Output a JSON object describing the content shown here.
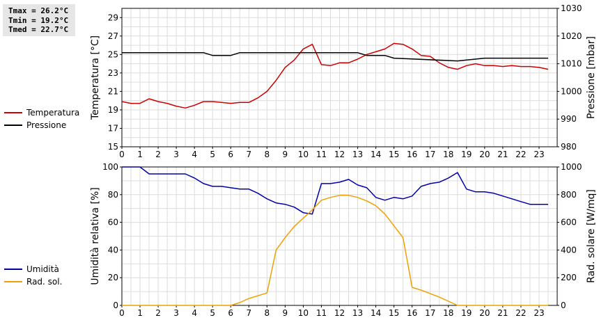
{
  "stats": {
    "tmax": "Tmax = 26.2°C",
    "tmin": "Tmin = 19.2°C",
    "tmed": "Tmed = 22.7°C"
  },
  "colors": {
    "temperatura": "#cc0000",
    "pressione": "#000000",
    "umidita": "#0000aa",
    "rad_sol": "#f0a000"
  },
  "legend_top": [
    {
      "label": "Temperatura",
      "color": "#cc0000"
    },
    {
      "label": "Pressione",
      "color": "#000000"
    }
  ],
  "legend_bottom": [
    {
      "label": "Umidità",
      "color": "#0000aa"
    },
    {
      "label": "Rad. sol.",
      "color": "#f0a000"
    }
  ],
  "chart_data": [
    {
      "type": "line",
      "xlabel": "",
      "ylabel": "Temperatura [°C]",
      "y2label": "Pressione [mbar]",
      "xlim": [
        0,
        24
      ],
      "ylim": [
        15,
        30
      ],
      "y2lim": [
        980,
        1030
      ],
      "xticks": [
        "0",
        "1",
        "2",
        "3",
        "4",
        "5",
        "6",
        "7",
        "8",
        "9",
        "10",
        "11",
        "12",
        "13",
        "14",
        "15",
        "16",
        "17",
        "18",
        "19",
        "20",
        "21",
        "22",
        "23"
      ],
      "yticks": [
        "15",
        "17",
        "19",
        "21",
        "23",
        "25",
        "27",
        "29"
      ],
      "y2ticks": [
        "980",
        "990",
        "1000",
        "1010",
        "1020",
        "1030"
      ],
      "grid": true,
      "legend": "left",
      "series": [
        {
          "name": "Temperatura",
          "axis": "left",
          "x": [
            0,
            0.5,
            1,
            1.5,
            2,
            2.5,
            3,
            3.5,
            4,
            4.5,
            5,
            5.5,
            6,
            6.5,
            7,
            7.5,
            8,
            8.5,
            9,
            9.5,
            10,
            10.5,
            11,
            11.5,
            12,
            12.5,
            13,
            13.5,
            14,
            14.5,
            15,
            15.5,
            16,
            16.5,
            17,
            17.5,
            18,
            18.5,
            19,
            19.5,
            20,
            20.5,
            21,
            21.5,
            22,
            22.5,
            23,
            23.5
          ],
          "y": [
            19.9,
            19.7,
            19.7,
            20.2,
            19.9,
            19.7,
            19.4,
            19.2,
            19.5,
            19.9,
            19.9,
            19.8,
            19.7,
            19.8,
            19.8,
            20.3,
            21.0,
            22.2,
            23.6,
            24.4,
            25.6,
            26.1,
            23.9,
            23.8,
            24.1,
            24.1,
            24.5,
            25.0,
            25.3,
            25.6,
            26.2,
            26.1,
            25.6,
            24.9,
            24.8,
            24.1,
            23.6,
            23.4,
            23.8,
            24.0,
            23.8,
            23.8,
            23.7,
            23.8,
            23.7,
            23.7,
            23.6,
            23.4
          ]
        },
        {
          "name": "Pressione",
          "axis": "right",
          "x": [
            0,
            4.5,
            5,
            6,
            6.5,
            13,
            13.5,
            14.5,
            15,
            18.5,
            20,
            23.5
          ],
          "y": [
            1014,
            1014,
            1013,
            1013,
            1014,
            1014,
            1013,
            1013,
            1012,
            1011,
            1012,
            1012
          ]
        }
      ]
    },
    {
      "type": "line",
      "xlabel": "",
      "ylabel": "Umidità relativa [%]",
      "y2label": "Rad. solare [W/mq]",
      "xlim": [
        0,
        24
      ],
      "ylim": [
        0,
        100
      ],
      "y2lim": [
        0,
        1000
      ],
      "xticks": [
        "0",
        "1",
        "2",
        "3",
        "4",
        "5",
        "6",
        "7",
        "8",
        "9",
        "10",
        "11",
        "12",
        "13",
        "14",
        "15",
        "16",
        "17",
        "18",
        "19",
        "20",
        "21",
        "22",
        "23"
      ],
      "yticks": [
        "0",
        "20",
        "40",
        "60",
        "80",
        "100"
      ],
      "y2ticks": [
        "0",
        "200",
        "400",
        "600",
        "800",
        "1000"
      ],
      "grid": true,
      "legend": "left",
      "series": [
        {
          "name": "Umidità",
          "axis": "left",
          "x": [
            0,
            1,
            1.5,
            3.5,
            4,
            4.5,
            5,
            5.5,
            6,
            6.5,
            7,
            7.5,
            8,
            8.5,
            9,
            9.5,
            10,
            10.5,
            11,
            11.5,
            12,
            12.5,
            13,
            13.5,
            14,
            14.5,
            15,
            15.5,
            16,
            16.5,
            17,
            17.5,
            18,
            18.5,
            19,
            19.5,
            20,
            20.5,
            21,
            21.5,
            22,
            22.5,
            23,
            23.5
          ],
          "y": [
            100,
            100,
            95,
            95,
            92,
            88,
            86,
            86,
            85,
            84,
            84,
            81,
            77,
            74,
            73,
            71,
            67,
            66,
            88,
            88,
            89,
            91,
            87,
            85,
            78,
            76,
            78,
            77,
            79,
            86,
            88,
            89,
            92,
            96,
            84,
            82,
            82,
            81,
            79,
            77,
            75,
            73,
            73,
            73
          ]
        },
        {
          "name": "Rad. sol.",
          "axis": "right",
          "x": [
            0,
            6,
            6.5,
            7,
            8,
            8.5,
            9,
            9.5,
            10,
            10.5,
            11,
            11.5,
            12,
            12.5,
            13,
            13.5,
            14,
            14.5,
            15,
            15.5,
            16,
            16.5,
            17,
            17.5,
            18,
            18.5,
            19,
            23.5
          ],
          "y": [
            0,
            0,
            20,
            50,
            90,
            400,
            490,
            570,
            630,
            690,
            760,
            780,
            795,
            795,
            780,
            755,
            720,
            660,
            575,
            490,
            130,
            110,
            85,
            60,
            30,
            0,
            0,
            0
          ]
        }
      ]
    }
  ]
}
